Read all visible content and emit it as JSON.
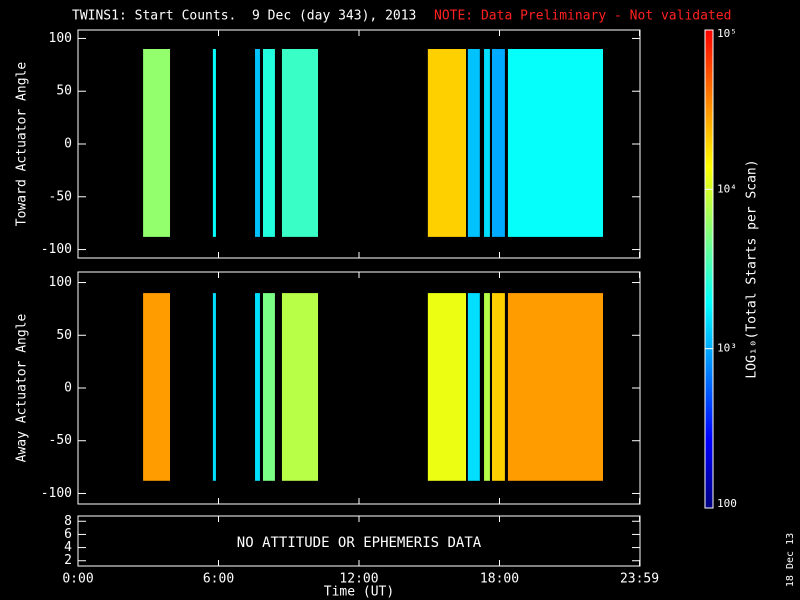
{
  "title": "TWINS1: Start Counts.  9 Dec (day 343), 2013",
  "note": "NOTE: Data Preliminary - Not validated",
  "footer_date": "18 Dec 13",
  "xlabel": "Time (UT)",
  "xlim": [
    0,
    24
  ],
  "xticks": [
    {
      "value": 0,
      "label": "0:00"
    },
    {
      "value": 6,
      "label": "6:00"
    },
    {
      "value": 12,
      "label": "12:00"
    },
    {
      "value": 18,
      "label": "18:00"
    },
    {
      "value": 23.98,
      "label": "23:59"
    }
  ],
  "colorbar": {
    "title": "LOG₁₀(Total Starts per Scan)",
    "log": true,
    "lim": [
      100,
      100000
    ],
    "ticks": [
      {
        "value": 100000,
        "label": "10⁵"
      },
      {
        "value": 10000,
        "label": "10⁴"
      },
      {
        "value": 1000,
        "label": "10³"
      },
      {
        "value": 100,
        "label": "100"
      }
    ],
    "colormap": [
      "#000080",
      "#0000ff",
      "#0080ff",
      "#00ffff",
      "#80ff80",
      "#ffff00",
      "#ff8000",
      "#ff0000"
    ]
  },
  "chart_data": [
    {
      "type": "heatmap",
      "ylabel": "Toward Actuator Angle",
      "ylim": [
        -108,
        108
      ],
      "yticks": [
        -100,
        -50,
        0,
        50,
        100
      ],
      "band_range": [
        -88,
        90
      ],
      "bands": [
        {
          "start": 2.78,
          "end": 3.93,
          "value": 6000
        },
        {
          "start": 5.76,
          "end": 5.89,
          "value": 2000
        },
        {
          "start": 7.56,
          "end": 7.77,
          "value": 1200
        },
        {
          "start": 7.9,
          "end": 8.41,
          "value": 2500
        },
        {
          "start": 8.71,
          "end": 10.25,
          "value": 3000
        },
        {
          "start": 14.94,
          "end": 16.57,
          "value": 20000
        },
        {
          "start": 16.65,
          "end": 17.16,
          "value": 1200
        },
        {
          "start": 17.34,
          "end": 17.59,
          "value": 1500
        },
        {
          "start": 17.68,
          "end": 18.23,
          "value": 1000
        },
        {
          "start": 18.36,
          "end": 22.42,
          "value": 2000
        }
      ]
    },
    {
      "type": "heatmap",
      "ylabel": "Away Actuator Angle",
      "ylim": [
        -110,
        110
      ],
      "yticks": [
        -100,
        -50,
        0,
        50,
        100
      ],
      "band_range": [
        -88,
        90
      ],
      "bands": [
        {
          "start": 2.78,
          "end": 3.93,
          "value": 30000
        },
        {
          "start": 5.76,
          "end": 5.89,
          "value": 1500
        },
        {
          "start": 7.56,
          "end": 7.77,
          "value": 1500
        },
        {
          "start": 7.9,
          "end": 8.41,
          "value": 5000
        },
        {
          "start": 8.71,
          "end": 10.25,
          "value": 8000
        },
        {
          "start": 14.94,
          "end": 16.57,
          "value": 12000
        },
        {
          "start": 16.65,
          "end": 17.16,
          "value": 1500
        },
        {
          "start": 17.34,
          "end": 17.59,
          "value": 8000
        },
        {
          "start": 17.68,
          "end": 18.23,
          "value": 20000
        },
        {
          "start": 18.36,
          "end": 22.42,
          "value": 30000
        }
      ]
    },
    {
      "type": "empty",
      "ylim": [
        1.2,
        8.8
      ],
      "yticks": [
        2,
        4,
        6,
        8
      ],
      "annotation": "NO ATTITUDE OR EPHEMERIS DATA"
    }
  ]
}
